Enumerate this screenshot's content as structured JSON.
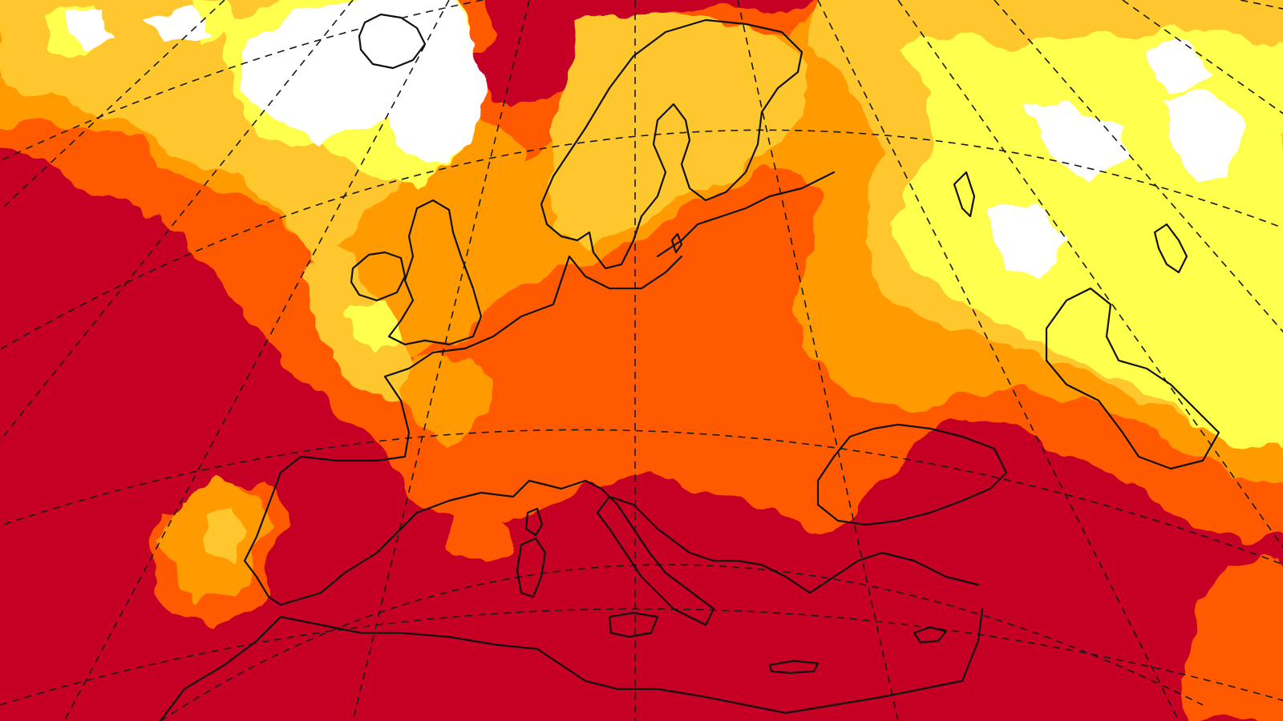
{
  "map": {
    "projection": "polar-stereographic",
    "region": "Europe",
    "graticule": "dashed",
    "coastlines": "black",
    "palette": {
      "level_0": "#ffffff",
      "level_1": "#ffff4d",
      "level_2": "#ffc72e",
      "level_3": "#ff9b00",
      "level_4": "#ff5a00",
      "level_5": "#c60024"
    }
  }
}
